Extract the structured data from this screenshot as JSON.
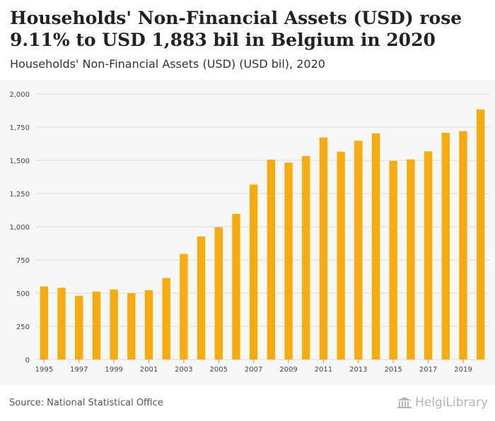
{
  "header": {
    "title": "Households' Non-Financial Assets (USD) rose 9.11% to USD 1,883 bil in Belgium in 2020",
    "subtitle": "Households' Non-Financial Assets (USD) (USD bil), 2020"
  },
  "footer": {
    "source": "Source: National Statistical Office",
    "logo_text": "HelgiLibrary"
  },
  "colors": {
    "bar": "#f7ab0c",
    "grid": "#dddddd",
    "axis_text": "#444444",
    "plot_bg": "#f7f7f7"
  },
  "chart_data": {
    "type": "bar",
    "title": "Households' Non-Financial Assets (USD) rose 9.11% to USD 1,883 bil in Belgium in 2020",
    "subtitle": "Households' Non-Financial Assets (USD) (USD bil), 2020",
    "xlabel": "",
    "ylabel": "",
    "ylim": [
      0,
      2000
    ],
    "yticks": [
      0,
      250,
      500,
      750,
      1000,
      1250,
      1500,
      1750,
      2000
    ],
    "ytick_labels": [
      "0",
      "250",
      "500",
      "750",
      "1,000",
      "1,250",
      "1,500",
      "1,750",
      "2,000"
    ],
    "grid": true,
    "categories": [
      "1995",
      "1996",
      "1997",
      "1998",
      "1999",
      "2000",
      "2001",
      "2002",
      "2003",
      "2004",
      "2005",
      "2006",
      "2007",
      "2008",
      "2009",
      "2010",
      "2011",
      "2012",
      "2013",
      "2014",
      "2015",
      "2016",
      "2017",
      "2018",
      "2019",
      "2020"
    ],
    "xtick_labels": [
      "1995",
      "1997",
      "1999",
      "2001",
      "2003",
      "2005",
      "2007",
      "2009",
      "2011",
      "2013",
      "2015",
      "2017",
      "2019"
    ],
    "series": [
      {
        "name": "Households' Non-Financial Assets (USD)",
        "values": [
          550,
          540,
          480,
          512,
          527,
          500,
          522,
          614,
          795,
          927,
          997,
          1097,
          1318,
          1505,
          1483,
          1532,
          1672,
          1565,
          1648,
          1703,
          1496,
          1507,
          1568,
          1707,
          1720,
          1883
        ]
      }
    ]
  }
}
